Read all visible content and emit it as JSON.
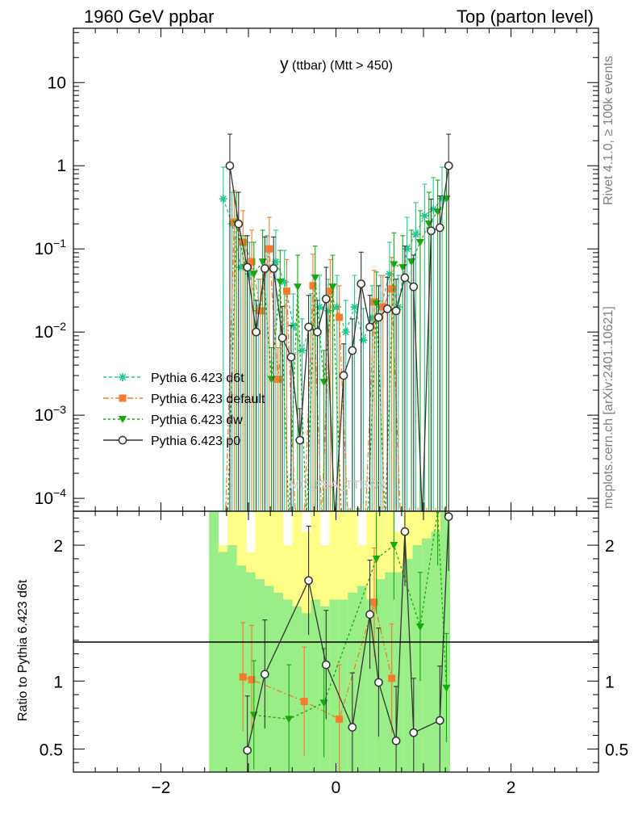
{
  "header": {
    "left": "1960 GeV ppbar",
    "right": "Top (parton level)"
  },
  "side_labels": {
    "rivet": "Rivet 4.1.0, ≥ 100k events",
    "mcplots": "mcplots.cern.ch [arXiv:2401.10621]"
  },
  "watermark": "MC_FBA_TTBAR",
  "colors": {
    "d6t": "#1fc98f",
    "default": "#f47c2c",
    "dw": "#16a90f",
    "p0": "#333333",
    "band_outer": "#ffff88",
    "band_inner": "#99ee88"
  },
  "chart_data": [
    {
      "type": "line",
      "panel": "main",
      "title": "y",
      "title_sub": " (ttbar) (Mtt > 450)",
      "xlabel": "",
      "ylabel": "",
      "xlim": [
        -3.0,
        3.0
      ],
      "ylim": [
        7e-05,
        45
      ],
      "yscale": "log",
      "y_tick_labels": [
        {
          "value": 10,
          "base": "10",
          "exp": ""
        },
        {
          "value": 1,
          "base": "1",
          "exp": ""
        },
        {
          "value": 0.1,
          "base": "10",
          "exp": "−1"
        },
        {
          "value": 0.01,
          "base": "10",
          "exp": "−2"
        },
        {
          "value": 0.001,
          "base": "10",
          "exp": "−3"
        },
        {
          "value": 0.0001,
          "base": "10",
          "exp": "−4"
        }
      ],
      "legend": [
        "Pythia 6.423 d6t",
        "Pythia 6.423 default",
        "Pythia 6.423 dw",
        "Pythia 6.423 p0"
      ],
      "legend_position": "lower-left",
      "x": [
        -1.25,
        -1.15,
        -1.05,
        -0.95,
        -0.85,
        -0.75,
        -0.65,
        -0.55,
        -0.45,
        -0.35,
        -0.25,
        -0.15,
        -0.05,
        0.05,
        0.15,
        0.25,
        0.35,
        0.45,
        0.55,
        0.65,
        0.75,
        0.85,
        0.95,
        1.05,
        1.15,
        1.25
      ],
      "series": [
        {
          "name": "Pythia 6.423 d6t",
          "key": "d6t",
          "offset": -0.0375,
          "values": [
            0.4,
            0.2,
            0.06,
            0.05,
            0.018,
            0.06,
            0.07,
            0.04,
            0.012,
            0.006,
            0.012,
            0.02,
            0.018,
            0.02,
            0.01,
            0.02,
            0.008,
            0.015,
            0.02,
            0.05,
            0.02,
            0.1,
            0.15,
            0.25,
            0.3,
            0.4
          ]
        },
        {
          "name": "Pythia 6.423 default",
          "key": "default",
          "offset": -0.0125,
          "values": [
            0.0,
            0.21,
            0.12,
            0.07,
            0.018,
            0.1,
            0.0027,
            0.031,
            0.0,
            0.0,
            0.036,
            0.0,
            0.031,
            0.015,
            0.0,
            0.0,
            0.0,
            0.023,
            0.02,
            0.033,
            0.0,
            0.0,
            0.0,
            0.0,
            0.0,
            0.0
          ]
        },
        {
          "name": "Pythia 6.423 dw",
          "key": "dw",
          "offset": 0.0125,
          "values": [
            0.0,
            0.2,
            0.06,
            0.05,
            0.07,
            0.0027,
            0.04,
            0.0,
            0.035,
            0.0,
            0.045,
            0.0025,
            0.035,
            0.0,
            0.0,
            0.0,
            0.0,
            0.022,
            0.0,
            0.065,
            0.06,
            0.07,
            0.12,
            0.2,
            0.28,
            0.4
          ]
        },
        {
          "name": "Pythia 6.423 p0",
          "key": "p0",
          "offset": 0.0375,
          "values": [
            1.0,
            0.2,
            0.06,
            0.01,
            0.058,
            0.058,
            0.0085,
            0.005,
            0.0005,
            0.0115,
            0.01,
            0.025,
            0.0,
            0.003,
            0.006,
            0.038,
            0.0115,
            0.015,
            0.019,
            0.018,
            0.045,
            0.035,
            0.0,
            0.165,
            0.18,
            1.0
          ]
        }
      ]
    },
    {
      "type": "line",
      "panel": "ratio",
      "title": "",
      "xlabel": "",
      "ylabel": "Ratio to Pythia 6.423 d6t",
      "xlim": [
        -3.0,
        3.0
      ],
      "ylim": [
        0.33,
        2.25
      ],
      "yscale": "linear",
      "y_ticks": [
        0.5,
        1,
        2
      ],
      "y_tick_labels": [
        "0.5",
        "1",
        "2"
      ],
      "x_ticks": [
        -2,
        0,
        2
      ],
      "x_tick_labels": [
        "−2",
        "0",
        "2"
      ],
      "reference": 1,
      "band": {
        "x": [
          -1.45,
          1.3
        ],
        "outer_top": [
          2.25,
          2.0,
          2.25,
          2.25,
          1.95,
          2.25,
          2.25,
          2.25,
          2.0,
          2.25,
          2.1,
          2.25,
          2.0,
          2.25,
          2.25,
          2.25,
          2.0,
          2.25,
          2.25,
          2.25,
          2.1,
          2.25,
          2.25,
          2.25,
          2.25,
          2.25
        ],
        "inner_top": [
          2.25,
          1.95,
          2.0,
          1.85,
          1.8,
          1.75,
          1.7,
          1.65,
          1.6,
          1.55,
          1.5,
          1.6,
          1.55,
          1.6,
          1.6,
          1.65,
          1.7,
          1.6,
          1.75,
          1.8,
          1.8,
          1.9,
          2.0,
          2.05,
          2.1,
          2.25
        ]
      },
      "x": [
        -1.25,
        -1.15,
        -1.05,
        -0.95,
        -0.85,
        -0.75,
        -0.65,
        -0.55,
        -0.45,
        -0.35,
        -0.25,
        -0.15,
        -0.05,
        0.05,
        0.15,
        0.25,
        0.35,
        0.45,
        0.55,
        0.65,
        0.75,
        0.85,
        0.95,
        1.05,
        1.15,
        1.25
      ],
      "series": [
        {
          "name": "Pythia 6.423 default",
          "key": "default",
          "offset": -0.0125,
          "values": [
            null,
            null,
            1.03,
            1.01,
            null,
            null,
            null,
            null,
            null,
            0.85,
            null,
            null,
            null,
            0.72,
            null,
            null,
            null,
            1.58,
            null,
            1.02,
            null,
            null,
            null,
            null,
            null,
            null
          ]
        },
        {
          "name": "Pythia 6.423 dw",
          "key": "dw",
          "offset": 0.0125,
          "values": [
            null,
            null,
            null,
            0.75,
            null,
            null,
            null,
            0.72,
            null,
            null,
            null,
            0.84,
            null,
            null,
            null,
            null,
            null,
            1.9,
            null,
            2.0,
            null,
            null,
            1.4,
            null,
            2.25,
            0.95
          ]
        },
        {
          "name": "Pythia 6.423 p0",
          "key": "p0",
          "offset": 0.0375,
          "values": [
            null,
            null,
            0.49,
            null,
            1.05,
            null,
            null,
            null,
            null,
            1.74,
            null,
            1.12,
            null,
            null,
            0.66,
            null,
            1.49,
            0.99,
            null,
            0.56,
            2.1,
            0.62,
            null,
            null,
            0.71,
            2.21
          ]
        }
      ]
    }
  ]
}
